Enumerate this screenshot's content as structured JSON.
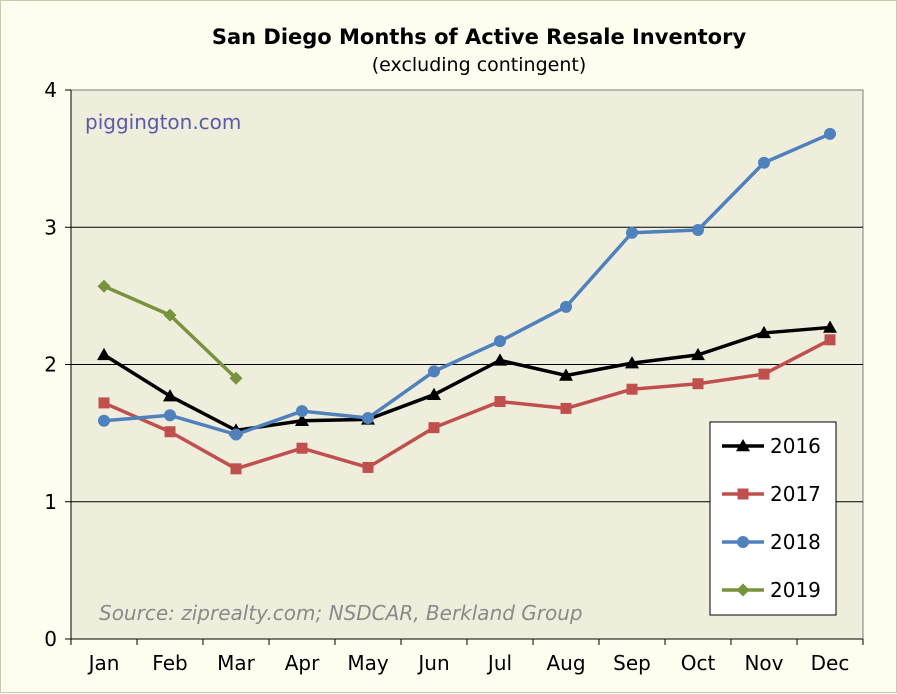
{
  "chart_data": {
    "type": "line",
    "title": "San Diego Months of Active Resale Inventory",
    "subtitle": "(excluding contingent)",
    "xlabel": "",
    "ylabel": "",
    "categories": [
      "Jan",
      "Feb",
      "Mar",
      "Apr",
      "May",
      "Jun",
      "Jul",
      "Aug",
      "Sep",
      "Oct",
      "Nov",
      "Dec"
    ],
    "ylim": [
      0,
      4
    ],
    "yticks": [
      "0",
      "1",
      "2",
      "3",
      "4"
    ],
    "grid": "horizontal",
    "legend_position": "bottom-right",
    "watermark": "piggington.com",
    "source": "Source: ziprealty.com; NSDCAR, Berkland Group",
    "series": [
      {
        "name": "2016",
        "color": "#000000",
        "marker": "triangle",
        "values": [
          2.07,
          1.77,
          1.52,
          1.59,
          1.6,
          1.78,
          2.03,
          1.92,
          2.01,
          2.07,
          2.23,
          2.27
        ]
      },
      {
        "name": "2017",
        "color": "#c0504d",
        "marker": "square",
        "values": [
          1.72,
          1.51,
          1.24,
          1.39,
          1.25,
          1.54,
          1.73,
          1.68,
          1.82,
          1.86,
          1.93,
          2.18
        ]
      },
      {
        "name": "2018",
        "color": "#4f81bd",
        "marker": "circle",
        "values": [
          1.59,
          1.63,
          1.49,
          1.66,
          1.61,
          1.95,
          2.17,
          2.42,
          2.96,
          2.98,
          3.47,
          3.68
        ]
      },
      {
        "name": "2019",
        "color": "#77933c",
        "marker": "diamond",
        "values": [
          2.57,
          2.36,
          1.9,
          null,
          null,
          null,
          null,
          null,
          null,
          null,
          null,
          null
        ]
      }
    ]
  }
}
